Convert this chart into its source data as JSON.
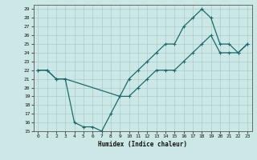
{
  "xlabel": "Humidex (Indice chaleur)",
  "bg_color": "#cce8e6",
  "grid_color": "#b0d8d4",
  "line_color": "#1a6b6b",
  "xlim": [
    -0.5,
    23.5
  ],
  "ylim": [
    15,
    29.5
  ],
  "xticks": [
    0,
    1,
    2,
    3,
    4,
    5,
    6,
    7,
    8,
    9,
    10,
    11,
    12,
    13,
    14,
    15,
    16,
    17,
    18,
    19,
    20,
    21,
    22,
    23
  ],
  "yticks": [
    15,
    16,
    17,
    18,
    19,
    20,
    21,
    22,
    23,
    24,
    25,
    26,
    27,
    28,
    29
  ],
  "line1_x": [
    0,
    1,
    2,
    3,
    9,
    10,
    11,
    12,
    13,
    14,
    15,
    16,
    17,
    18,
    19,
    20,
    21,
    22,
    23
  ],
  "line1_y": [
    22,
    22,
    21,
    21,
    19,
    21,
    22,
    23,
    24,
    25,
    25,
    27,
    28,
    29,
    28,
    25,
    25,
    24,
    25
  ],
  "line2_x": [
    0,
    1,
    2,
    3,
    4,
    5,
    6,
    7,
    8,
    9,
    10,
    11,
    12,
    13,
    14,
    15,
    16,
    17,
    18,
    19,
    20,
    21,
    22,
    23
  ],
  "line2_y": [
    22,
    22,
    21,
    21,
    16,
    15.5,
    15.5,
    15,
    17,
    19,
    19,
    20,
    21,
    22,
    22,
    22,
    23,
    24,
    25,
    26,
    24,
    24,
    24,
    25
  ]
}
